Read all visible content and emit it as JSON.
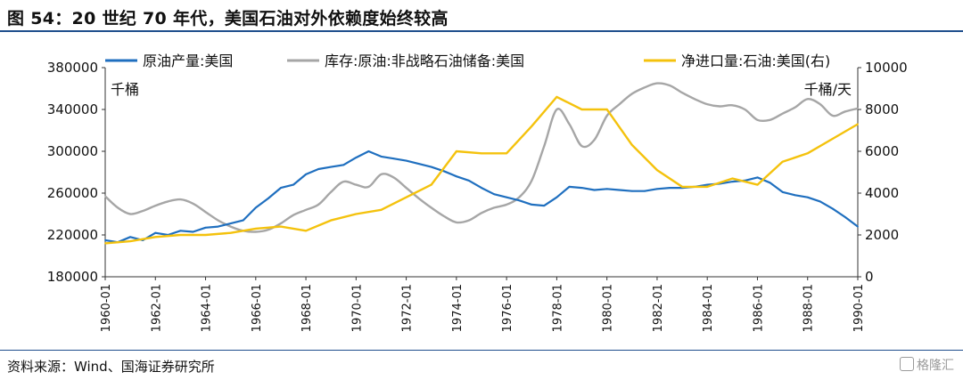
{
  "header": {
    "title": "图 54：20 世纪 70 年代，美国石油对外依赖度始终较高"
  },
  "footer": {
    "source": "资料来源：Wind、国海证券研究所",
    "watermark": "格隆汇"
  },
  "chart_data": {
    "type": "line",
    "left_unit": "千桶",
    "right_unit": "千桶/天",
    "left_ylim": [
      180000,
      380000
    ],
    "left_ticks": [
      180000,
      220000,
      260000,
      300000,
      340000,
      380000
    ],
    "right_ylim": [
      0,
      10000
    ],
    "right_ticks": [
      0,
      2000,
      4000,
      6000,
      8000,
      10000
    ],
    "x_ticks": [
      "1960-01",
      "1962-01",
      "1964-01",
      "1966-01",
      "1968-01",
      "1970-01",
      "1972-01",
      "1974-01",
      "1976-01",
      "1978-01",
      "1980-01",
      "1982-01",
      "1984-01",
      "1986-01",
      "1988-01",
      "1990-01"
    ],
    "legend_position": "top",
    "grid": false,
    "series": [
      {
        "name": "原油产量:美国",
        "axis": "left",
        "color": "#1f6fbf",
        "x": [
          1960.0,
          1960.5,
          1961.0,
          1961.5,
          1962.0,
          1962.5,
          1963.0,
          1963.5,
          1964.0,
          1964.5,
          1965.0,
          1965.5,
          1966.0,
          1966.5,
          1967.0,
          1967.5,
          1968.0,
          1968.5,
          1969.0,
          1969.5,
          1970.0,
          1970.5,
          1971.0,
          1971.5,
          1972.0,
          1972.5,
          1973.0,
          1973.5,
          1974.0,
          1974.5,
          1975.0,
          1975.5,
          1976.0,
          1976.5,
          1977.0,
          1977.5,
          1978.0,
          1978.5,
          1979.0,
          1979.5,
          1980.0,
          1980.5,
          1981.0,
          1981.5,
          1982.0,
          1982.5,
          1983.0,
          1983.5,
          1984.0,
          1984.5,
          1985.0,
          1985.5,
          1986.0,
          1986.5,
          1987.0,
          1987.5,
          1988.0,
          1988.5,
          1989.0,
          1989.5,
          1990.0
        ],
        "y": [
          215000,
          213000,
          218000,
          215000,
          222000,
          220000,
          224000,
          223000,
          227000,
          228000,
          231000,
          234000,
          246000,
          255000,
          265000,
          268000,
          278000,
          283000,
          285000,
          287000,
          294000,
          300000,
          295000,
          293000,
          291000,
          288000,
          285000,
          281000,
          276000,
          272000,
          265000,
          259000,
          256000,
          253000,
          249000,
          248000,
          256000,
          266000,
          265000,
          263000,
          264000,
          263000,
          262000,
          262000,
          264000,
          265000,
          265000,
          266000,
          268000,
          269000,
          271000,
          272000,
          275000,
          270000,
          261000,
          258000,
          256000,
          252000,
          245000,
          237000,
          228000
        ]
      },
      {
        "name": "库存:原油:非战略石油储备:美国",
        "axis": "left",
        "color": "#a6a6a6",
        "x": [
          1960.0,
          1960.5,
          1961.0,
          1961.5,
          1962.0,
          1962.5,
          1963.0,
          1963.5,
          1964.0,
          1964.5,
          1965.0,
          1965.5,
          1966.0,
          1966.5,
          1967.0,
          1967.5,
          1968.0,
          1968.5,
          1969.0,
          1969.5,
          1970.0,
          1970.5,
          1971.0,
          1971.5,
          1972.0,
          1972.5,
          1973.0,
          1973.5,
          1974.0,
          1974.5,
          1975.0,
          1975.5,
          1976.0,
          1976.5,
          1977.0,
          1977.5,
          1978.0,
          1978.5,
          1979.0,
          1979.5,
          1980.0,
          1980.5,
          1981.0,
          1981.5,
          1982.0,
          1982.5,
          1983.0,
          1983.5,
          1984.0,
          1984.5,
          1985.0,
          1985.5,
          1986.0,
          1986.5,
          1987.0,
          1987.5,
          1988.0,
          1988.5,
          1989.0,
          1989.5,
          1990.0
        ],
        "y": [
          257000,
          246000,
          240000,
          243000,
          248000,
          252000,
          254000,
          250000,
          242000,
          234000,
          228000,
          224000,
          223000,
          225000,
          231000,
          239000,
          244000,
          249000,
          261000,
          271000,
          268000,
          266000,
          278000,
          275000,
          265000,
          255000,
          246000,
          238000,
          232000,
          234000,
          241000,
          246000,
          249000,
          256000,
          272000,
          305000,
          340000,
          326000,
          305000,
          311000,
          334000,
          345000,
          355000,
          361000,
          365000,
          363000,
          356000,
          350000,
          345000,
          343000,
          344000,
          340000,
          330000,
          330000,
          336000,
          342000,
          350000,
          345000,
          334000,
          338000,
          341000
        ]
      },
      {
        "name": "净进口量:石油:美国(右)",
        "axis": "right",
        "color": "#f4c20d",
        "x": [
          1960.0,
          1961.0,
          1962.0,
          1963.0,
          1964.0,
          1965.0,
          1966.0,
          1967.0,
          1968.0,
          1969.0,
          1970.0,
          1971.0,
          1972.0,
          1973.0,
          1974.0,
          1975.0,
          1976.0,
          1977.0,
          1978.0,
          1979.0,
          1980.0,
          1981.0,
          1982.0,
          1983.0,
          1984.0,
          1985.0,
          1986.0,
          1987.0,
          1988.0,
          1989.0,
          1990.0
        ],
        "y": [
          1600,
          1700,
          1900,
          2000,
          2000,
          2100,
          2300,
          2400,
          2200,
          2700,
          3000,
          3200,
          3800,
          4400,
          6000,
          5900,
          5900,
          7200,
          8600,
          8000,
          8000,
          6300,
          5100,
          4300,
          4300,
          4700,
          4400,
          5500,
          5900,
          6600,
          7300
        ]
      }
    ]
  }
}
